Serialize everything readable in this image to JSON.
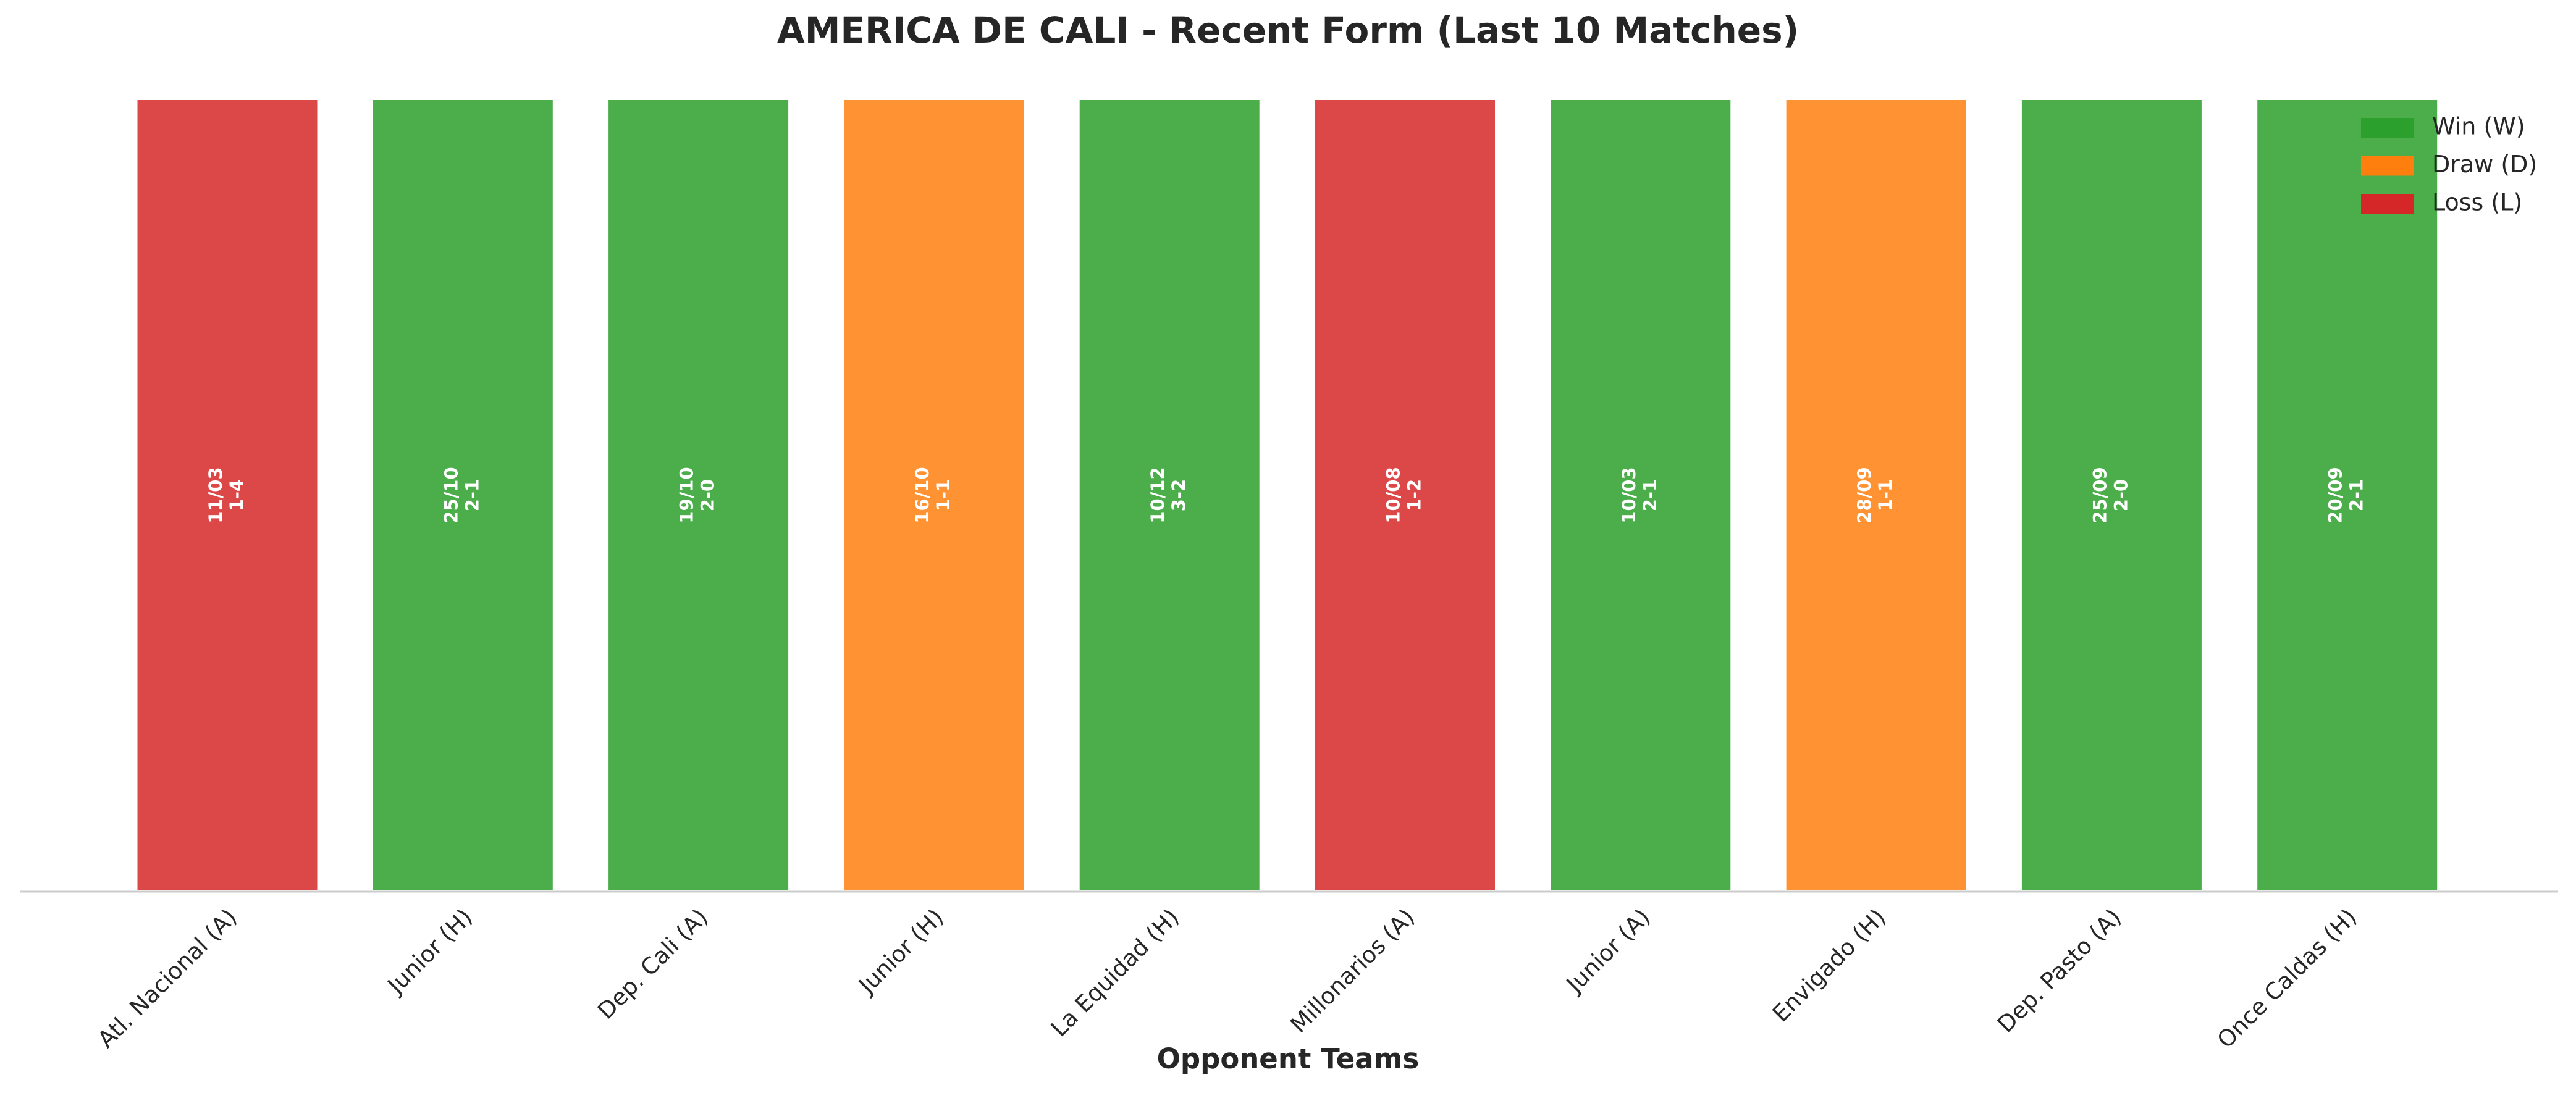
{
  "chart_data": {
    "type": "bar",
    "title": "AMERICA DE CALI - Recent Form (Last 10 Matches)",
    "xlabel": "Opponent Teams",
    "categories": [
      "Atl. Nacional (A)",
      "Junior (H)",
      "Dep. Cali (A)",
      "Junior (H)",
      "La Equidad (H)",
      "Millonarios (A)",
      "Junior (A)",
      "Envigado (H)",
      "Dep. Pasto (A)",
      "Once Caldas (H)"
    ],
    "values": [
      1,
      1,
      1,
      1,
      1,
      1,
      1,
      1,
      1,
      1
    ],
    "dates": [
      "11/03",
      "25/10",
      "19/10",
      "16/10",
      "10/12",
      "10/08",
      "10/03",
      "28/09",
      "25/09",
      "20/09"
    ],
    "scores": [
      "1-4",
      "2-1",
      "2-0",
      "1-1",
      "3-2",
      "1-2",
      "2-1",
      "1-1",
      "2-0",
      "2-1"
    ],
    "colors": [
      "#d62728",
      "#2ca02c",
      "#2ca02c",
      "#ff7f0e",
      "#2ca02c",
      "#d62728",
      "#2ca02c",
      "#ff7f0e",
      "#2ca02c",
      "#2ca02c"
    ],
    "legend": [
      {
        "name": "Win (W)",
        "color": "#2ca02c"
      },
      {
        "name": "Draw (D)",
        "color": "#ff7f0e"
      },
      {
        "name": "Loss (L)",
        "color": "#d62728"
      }
    ],
    "ylim": [
      0,
      1
    ]
  }
}
